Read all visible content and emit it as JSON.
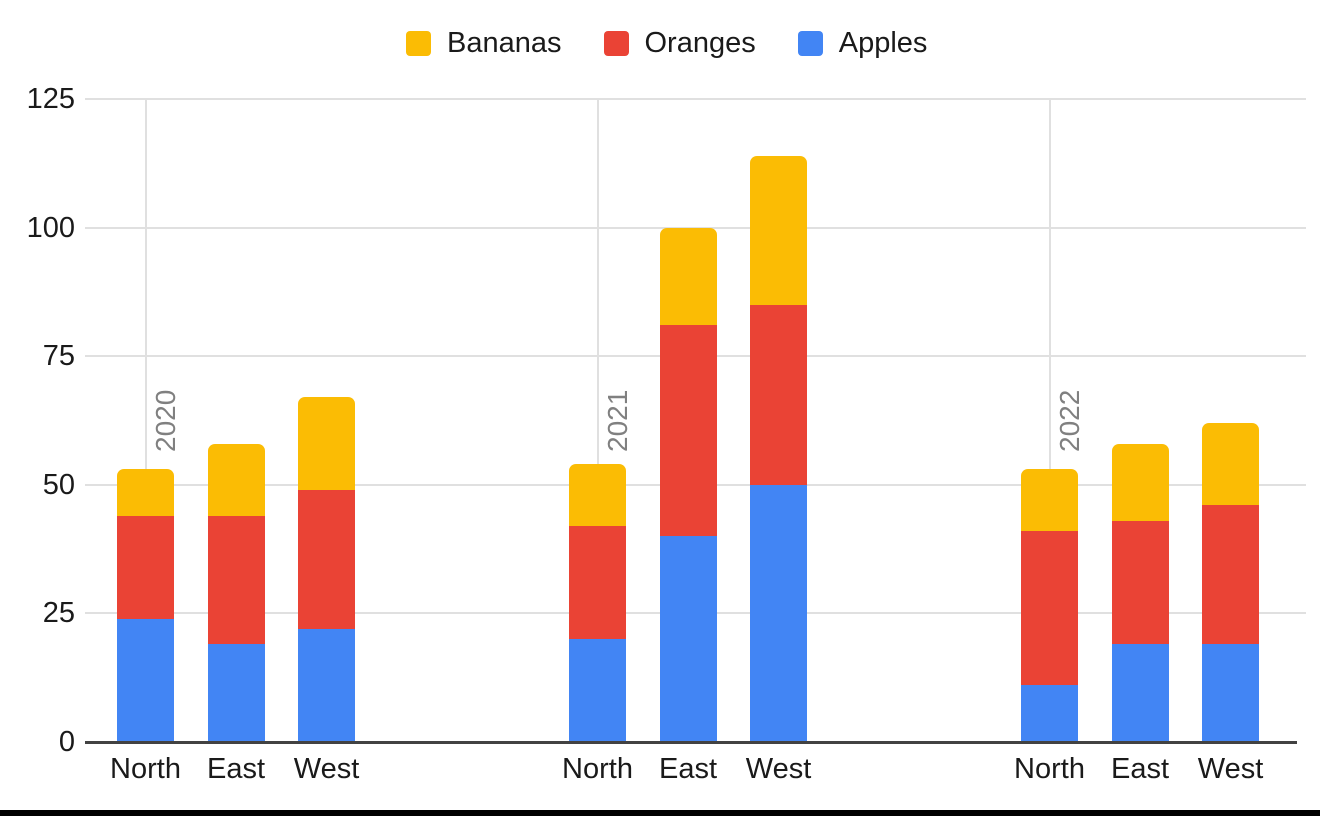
{
  "chart_data": {
    "type": "bar",
    "stacked": true,
    "title": "",
    "legend_position": "top",
    "legend_order": [
      "Bananas",
      "Oranges",
      "Apples"
    ],
    "series": [
      {
        "name": "Bananas",
        "color": "#FBBC04"
      },
      {
        "name": "Oranges",
        "color": "#EA4335"
      },
      {
        "name": "Apples",
        "color": "#4285F4"
      }
    ],
    "stack_order_bottom_to_top": [
      "Apples",
      "Oranges",
      "Bananas"
    ],
    "y_axis": {
      "min": 0,
      "max": 125,
      "ticks": [
        0,
        25,
        50,
        75,
        100,
        125
      ]
    },
    "grid": true,
    "groups": [
      {
        "year": "2020",
        "categories": [
          "North",
          "East",
          "West"
        ],
        "values": {
          "Apples": [
            24,
            19,
            22
          ],
          "Oranges": [
            20,
            25,
            27
          ],
          "Bananas": [
            9,
            14,
            18
          ]
        },
        "totals": [
          53,
          58,
          67
        ]
      },
      {
        "year": "2021",
        "categories": [
          "North",
          "East",
          "West"
        ],
        "values": {
          "Apples": [
            20,
            40,
            50
          ],
          "Oranges": [
            22,
            41,
            35
          ],
          "Bananas": [
            12,
            19,
            29
          ]
        },
        "totals": [
          54,
          100,
          114
        ]
      },
      {
        "year": "2022",
        "categories": [
          "North",
          "East",
          "West"
        ],
        "values": {
          "Apples": [
            11,
            19,
            19
          ],
          "Oranges": [
            30,
            24,
            27
          ],
          "Bananas": [
            12,
            15,
            16
          ]
        },
        "totals": [
          53,
          58,
          62
        ]
      }
    ]
  }
}
